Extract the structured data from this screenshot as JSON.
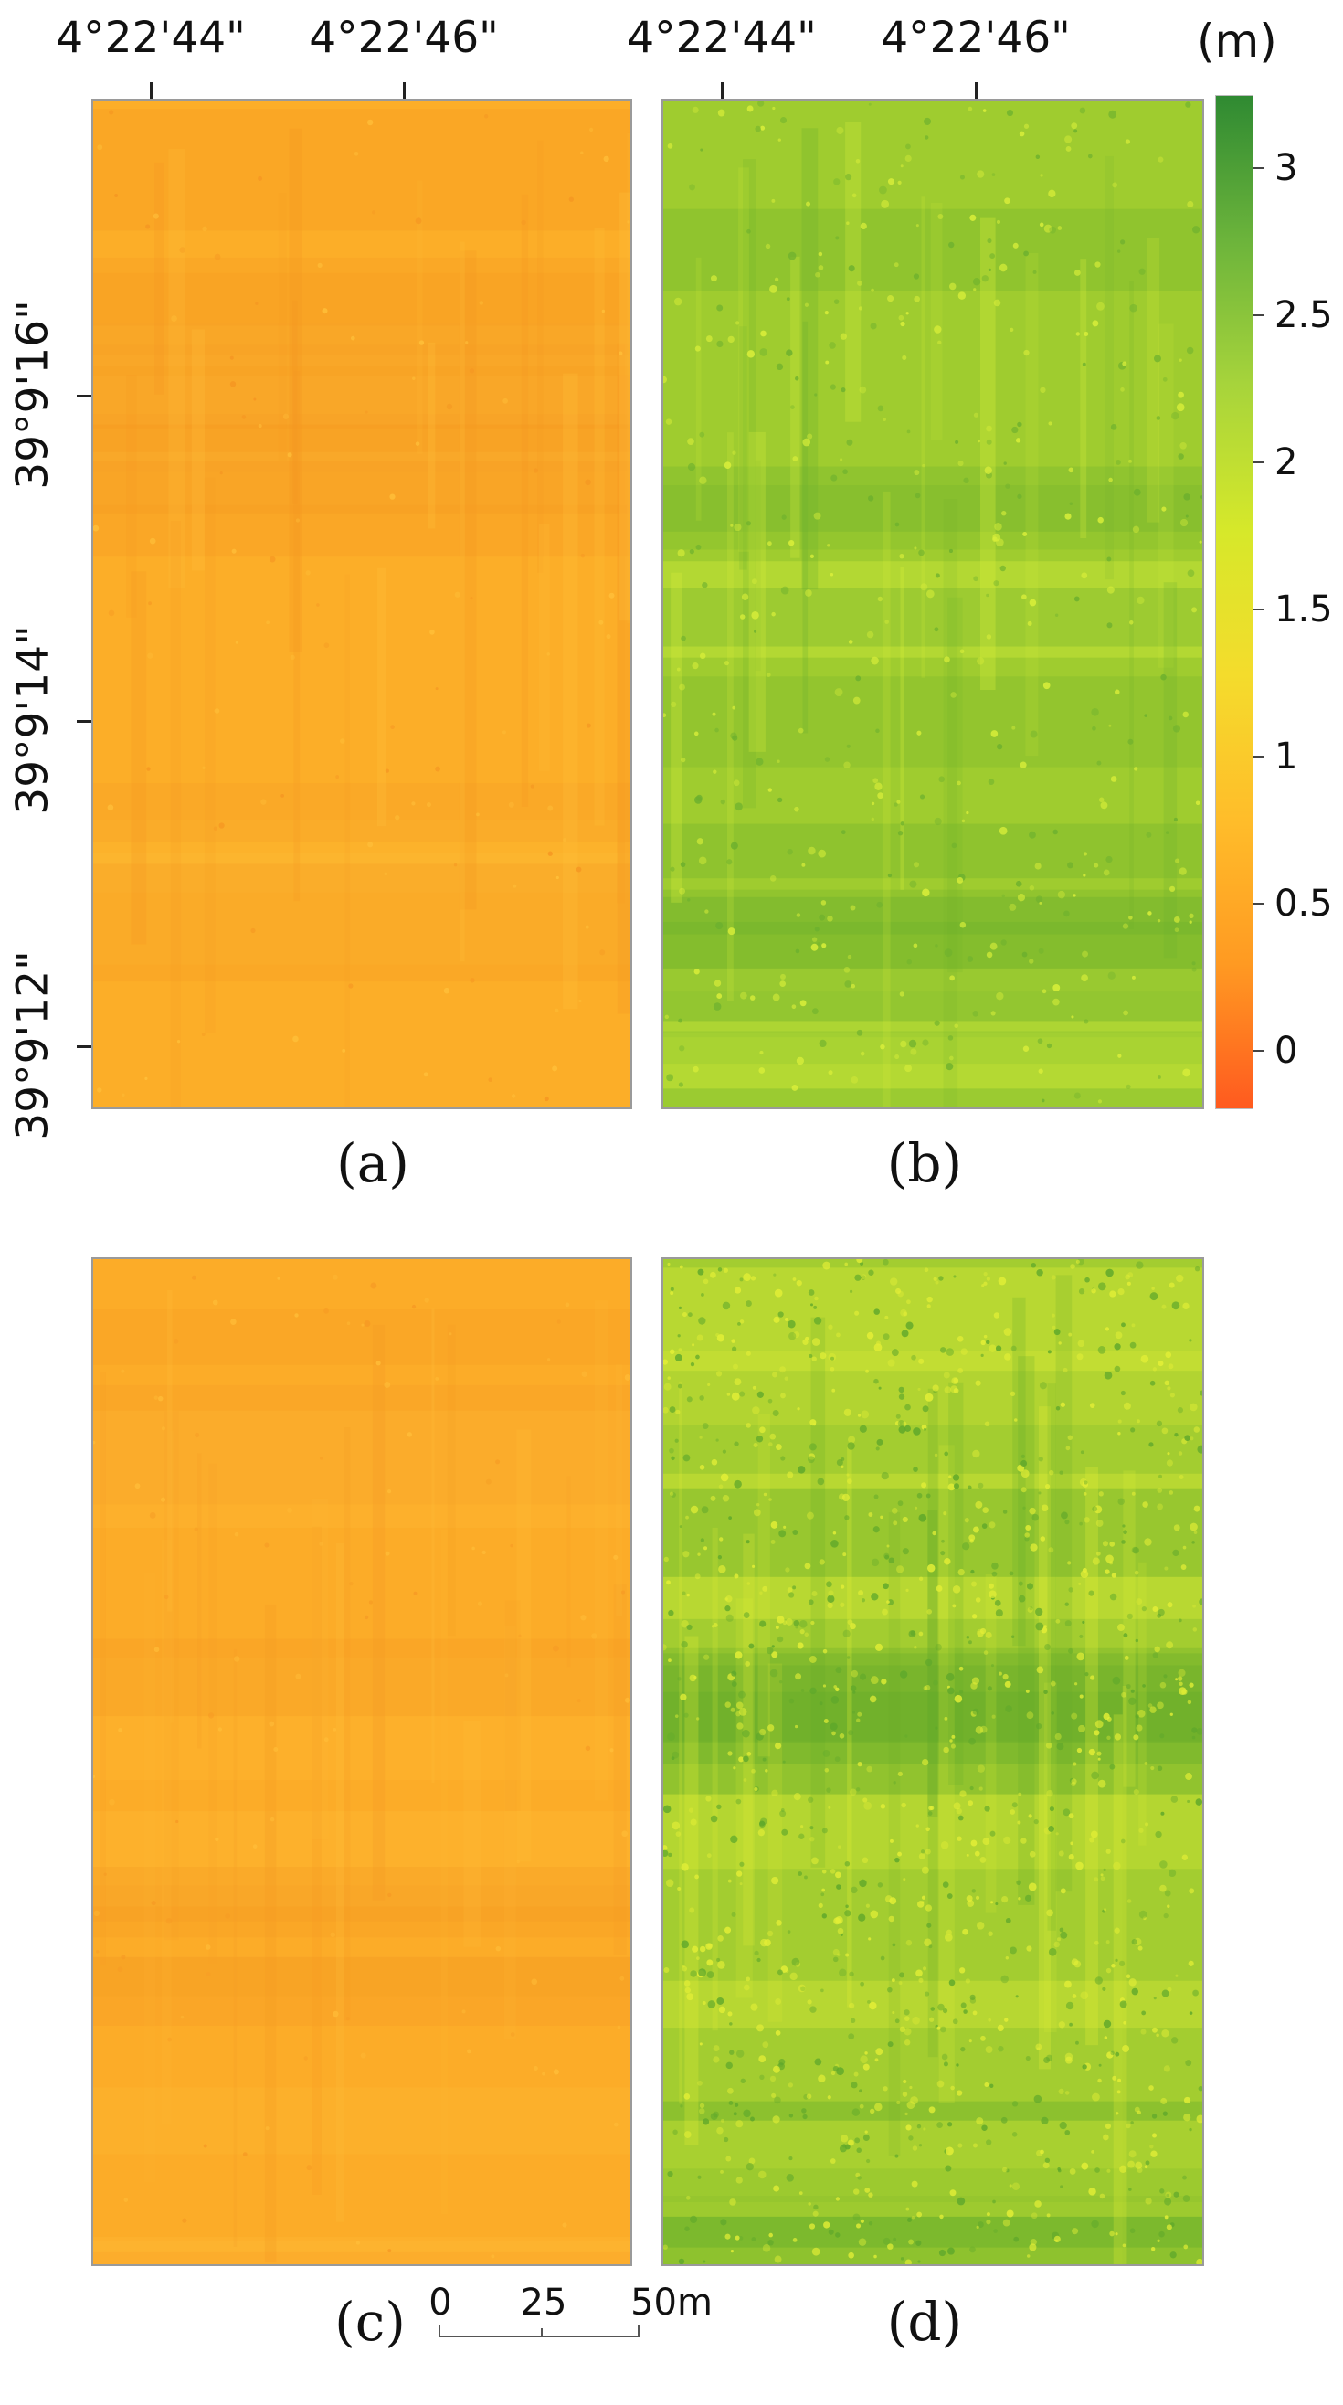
{
  "colorbar": {
    "unit": "(m)",
    "min": -0.2,
    "max": 3.25,
    "colors": [
      "#ff5a1f",
      "#ff9a22",
      "#ffbd2a",
      "#f4dc2c",
      "#d6e82a",
      "#a7d43b",
      "#6cb43b",
      "#2f8a32"
    ],
    "ticks": [
      "3",
      "2.5",
      "2",
      "1.5",
      "1",
      "0.5",
      "0"
    ],
    "tick_values": [
      3,
      2.5,
      2,
      1.5,
      1,
      0.5,
      0
    ]
  },
  "axes": {
    "lon_ticks_left": [
      "4°22'44\"",
      "4°22'46\""
    ],
    "lon_ticks_right": [
      "4°22'44\"",
      "4°22'46\""
    ],
    "lat_ticks": [
      "39°9'16\"",
      "39°9'14\"",
      "39°9'12\""
    ]
  },
  "panels": [
    {
      "caption": "(a)",
      "base": "#fcae28",
      "shade": "#f59622",
      "light": "#ffc03a",
      "mean_height_m": 0.8
    },
    {
      "caption": "(b)",
      "base": "#9fcc2f",
      "shade": "#6cb02e",
      "light": "#dcf03a",
      "mean_height_m": 2.1
    },
    {
      "caption": "(c)",
      "base": "#fcac28",
      "shade": "#f69a24",
      "light": "#ffbd38",
      "mean_height_m": 0.8
    },
    {
      "caption": "(d)",
      "base": "#a3cd30",
      "shade": "#5fa82b",
      "light": "#e4ef36",
      "mean_height_m": 2.0
    }
  ],
  "scalebar": {
    "labels": [
      "0",
      "25",
      "50m"
    ]
  }
}
